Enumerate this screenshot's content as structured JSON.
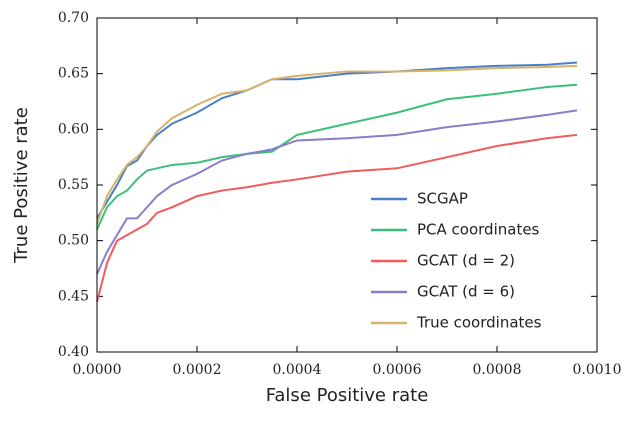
{
  "chart_data": {
    "type": "line",
    "xlabel": "False Positive rate",
    "ylabel": "True Positive rate",
    "x": [
      0,
      2e-05,
      4e-05,
      6e-05,
      8e-05,
      0.0001,
      0.00012,
      0.00015,
      0.0002,
      0.00025,
      0.0003,
      0.00035,
      0.0004,
      0.0005,
      0.0006,
      0.0007,
      0.0008,
      0.0009,
      0.00096
    ],
    "series": [
      {
        "name": "SCGAP",
        "color": "#4a7fc8",
        "values": [
          0.52,
          0.535,
          0.55,
          0.567,
          0.572,
          0.585,
          0.595,
          0.605,
          0.615,
          0.628,
          0.635,
          0.645,
          0.645,
          0.65,
          0.652,
          0.655,
          0.657,
          0.658,
          0.66
        ]
      },
      {
        "name": "PCA coordinates",
        "color": "#3cbf7a",
        "values": [
          0.51,
          0.53,
          0.54,
          0.545,
          0.555,
          0.563,
          0.565,
          0.568,
          0.57,
          0.575,
          0.578,
          0.58,
          0.595,
          0.605,
          0.615,
          0.627,
          0.632,
          0.638,
          0.64
        ]
      },
      {
        "name": "GCAT (d = 2)",
        "color": "#f05c5c",
        "values": [
          0.445,
          0.48,
          0.5,
          0.505,
          0.51,
          0.515,
          0.525,
          0.53,
          0.54,
          0.545,
          0.548,
          0.552,
          0.555,
          0.562,
          0.565,
          0.575,
          0.585,
          0.592,
          0.595
        ]
      },
      {
        "name": "GCAT (d = 6)",
        "color": "#8a7cc8",
        "values": [
          0.47,
          0.49,
          0.505,
          0.52,
          0.52,
          0.53,
          0.54,
          0.55,
          0.56,
          0.572,
          0.578,
          0.582,
          0.59,
          0.592,
          0.595,
          0.602,
          0.607,
          0.613,
          0.617
        ]
      },
      {
        "name": "True coordinates",
        "color": "#d4b36a",
        "values": [
          0.515,
          0.54,
          0.555,
          0.568,
          0.575,
          0.585,
          0.598,
          0.61,
          0.622,
          0.632,
          0.635,
          0.645,
          0.648,
          0.652,
          0.652,
          0.653,
          0.655,
          0.656,
          0.657
        ]
      }
    ],
    "xlim": [
      0,
      0.001
    ],
    "xticks": [
      {
        "value": 0,
        "label": "0.0000"
      },
      {
        "value": 0.0002,
        "label": "0.0002"
      },
      {
        "value": 0.0004,
        "label": "0.0004"
      },
      {
        "value": 0.0006,
        "label": "0.0006"
      },
      {
        "value": 0.0008,
        "label": "0.0008"
      },
      {
        "value": 0.001,
        "label": "0.0010"
      }
    ],
    "ylim": [
      0.4,
      0.7
    ],
    "yticks": [
      {
        "value": 0.4,
        "label": "0.40"
      },
      {
        "value": 0.45,
        "label": "0.45"
      },
      {
        "value": 0.5,
        "label": "0.50"
      },
      {
        "value": 0.55,
        "label": "0.55"
      },
      {
        "value": 0.6,
        "label": "0.60"
      },
      {
        "value": 0.65,
        "label": "0.65"
      },
      {
        "value": 0.7,
        "label": "0.70"
      }
    ],
    "grid": false,
    "legend": "lower right"
  }
}
